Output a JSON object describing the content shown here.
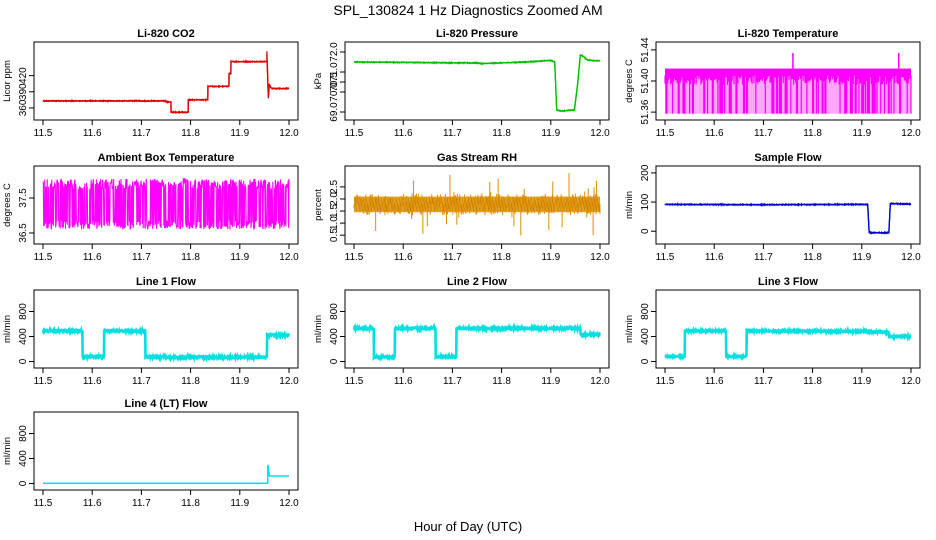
{
  "figure": {
    "title": "SPL_130824  1 Hz Diagnostics Zoomed AM",
    "xlabel": "Hour of Day (UTC)"
  },
  "chart_data": [
    {
      "id": "p0",
      "type": "line",
      "title": "Li-820 CO2",
      "ylabel": "Licor ppm",
      "color": "#e00000",
      "xlim": [
        11.5,
        12.0
      ],
      "ylim": [
        345,
        475
      ],
      "xticks": [
        "11.5",
        "11.6",
        "11.7",
        "11.8",
        "11.9",
        "12.0"
      ],
      "yticks": [
        {
          "v": 360,
          "label": "360"
        },
        {
          "v": 390,
          "label": "390"
        },
        {
          "v": 420,
          "label": "420"
        }
      ],
      "noise": 0.8,
      "series": [
        {
          "x": [
            11.5,
            11.75,
            11.75,
            11.76,
            11.76,
            11.795,
            11.795,
            11.835,
            11.835,
            11.878,
            11.878,
            11.882,
            11.882,
            11.955,
            11.955,
            11.958,
            11.96,
            11.963,
            11.966,
            12.0
          ],
          "y": [
            373,
            373,
            371,
            371,
            352,
            352,
            375,
            375,
            400,
            400,
            424,
            424,
            446,
            446,
            465,
            378,
            404,
            398,
            396,
            396
          ]
        }
      ]
    },
    {
      "id": "p1",
      "type": "line",
      "title": "Li-820 Pressure",
      "ylabel": "kPa",
      "color": "#00c000",
      "xlim": [
        11.5,
        12.0
      ],
      "ylim": [
        68.8,
        72.3
      ],
      "xticks": [
        "11.5",
        "11.6",
        "11.7",
        "11.8",
        "11.9",
        "12.0"
      ],
      "yticks": [
        {
          "v": 69.0,
          "label": "69.0"
        },
        {
          "v": 70.0,
          "label": "70.0"
        },
        {
          "v": 70.5,
          "label": "70.5"
        },
        {
          "v": 71.0,
          "label": "71.0"
        },
        {
          "v": 72.0,
          "label": "72.0"
        }
      ],
      "noise": 0.02,
      "series": [
        {
          "x": [
            11.5,
            11.75,
            11.76,
            11.85,
            11.9,
            11.908,
            11.912,
            11.92,
            11.948,
            11.955,
            11.96,
            11.965,
            11.975,
            12.0
          ],
          "y": [
            71.5,
            71.45,
            71.42,
            71.5,
            71.58,
            71.5,
            69.1,
            69.05,
            69.1,
            70.5,
            71.85,
            71.8,
            71.6,
            71.55
          ]
        }
      ]
    },
    {
      "id": "p2",
      "type": "line",
      "title": "Li-820 Temperature",
      "ylabel": "degrees C",
      "color": "#ff00ff",
      "xlim": [
        11.5,
        12.0
      ],
      "ylim": [
        51.355,
        51.445
      ],
      "xticks": [
        "11.5",
        "11.6",
        "11.7",
        "11.8",
        "11.9",
        "12.0"
      ],
      "yticks": [
        {
          "v": 51.36,
          "label": "51.36"
        },
        {
          "v": 51.4,
          "label": "51.40"
        },
        {
          "v": 51.44,
          "label": "51.44"
        }
      ],
      "band": {
        "x0": 11.5,
        "x1": 12.0,
        "y0": 51.358,
        "y1": 51.416,
        "top_dense": 51.407
      },
      "spikes": [
        {
          "x": 11.76,
          "y": 51.436
        },
        {
          "x": 11.975,
          "y": 51.436
        }
      ]
    },
    {
      "id": "p3",
      "type": "line",
      "title": "Ambient Box Temperature",
      "ylabel": "degrees C",
      "color": "#ff00ff",
      "xlim": [
        11.5,
        12.0
      ],
      "ylim": [
        36.3,
        38.3
      ],
      "xticks": [
        "11.5",
        "11.6",
        "11.7",
        "11.8",
        "11.9",
        "12.0"
      ],
      "yticks": [
        {
          "v": 36.5,
          "label": "36.5"
        },
        {
          "v": 37.5,
          "label": "37.5"
        }
      ],
      "band": {
        "x0": 11.5,
        "x1": 12.0,
        "y0": 36.6,
        "y1": 38.05,
        "mid": 37.35
      }
    },
    {
      "id": "p4",
      "type": "scatter",
      "title": "Gas Stream RH",
      "ylabel": "percent",
      "color": "#e09000",
      "xlim": [
        11.5,
        12.0
      ],
      "ylim": [
        0.3,
        3.2
      ],
      "xticks": [
        "11.5",
        "11.6",
        "11.7",
        "11.8",
        "11.9",
        "12.0"
      ],
      "yticks": [
        {
          "v": 0.5,
          "label": "0.5"
        },
        {
          "v": 1.0,
          "label": "1.0"
        },
        {
          "v": 1.5,
          "label": "1.5"
        },
        {
          "v": 2.0,
          "label": "2.0"
        },
        {
          "v": 2.5,
          "label": "2.5"
        }
      ],
      "band": {
        "x0": 11.5,
        "x1": 12.0,
        "y0": 1.45,
        "y1": 2.1,
        "mid": 1.78
      }
    },
    {
      "id": "p5",
      "type": "line",
      "title": "Sample Flow",
      "ylabel": "ml/min",
      "color": "#0000cc",
      "xlim": [
        11.5,
        12.0
      ],
      "ylim": [
        -30,
        210
      ],
      "xticks": [
        "11.5",
        "11.6",
        "11.7",
        "11.8",
        "11.9",
        "12.0"
      ],
      "yticks": [
        {
          "v": 0,
          "label": "0"
        },
        {
          "v": 100,
          "label": "100"
        },
        {
          "v": 200,
          "label": "200"
        }
      ],
      "noise": 1.5,
      "series": [
        {
          "x": [
            11.5,
            11.7,
            11.9,
            11.912,
            11.915,
            11.955,
            11.958,
            12.0
          ],
          "y": [
            92,
            91,
            92,
            92,
            -5,
            -5,
            95,
            93
          ]
        }
      ]
    },
    {
      "id": "p6",
      "type": "line",
      "title": "Line 1 Flow",
      "ylabel": "ml/min",
      "color": "#00e0e0",
      "xlim": [
        11.5,
        12.0
      ],
      "ylim": [
        -40,
        1080
      ],
      "xticks": [
        "11.5",
        "11.6",
        "11.7",
        "11.8",
        "11.9",
        "12.0"
      ],
      "yticks": [
        {
          "v": 0,
          "label": "0"
        },
        {
          "v": 400,
          "label": "400"
        },
        {
          "v": 800,
          "label": "800"
        }
      ],
      "noise": 12,
      "series": [
        {
          "x": [
            11.5,
            11.58,
            11.58,
            11.624,
            11.624,
            11.708,
            11.708,
            11.75,
            11.955,
            11.955,
            12.0
          ],
          "y": [
            490,
            490,
            75,
            75,
            490,
            490,
            75,
            68,
            68,
            420,
            420
          ]
        }
      ]
    },
    {
      "id": "p7",
      "type": "line",
      "title": "Line 2 Flow",
      "ylabel": "ml/min",
      "color": "#00e0e0",
      "xlim": [
        11.5,
        12.0
      ],
      "ylim": [
        -40,
        1080
      ],
      "xticks": [
        "11.5",
        "11.6",
        "11.7",
        "11.8",
        "11.9",
        "12.0"
      ],
      "yticks": [
        {
          "v": 0,
          "label": "0"
        },
        {
          "v": 400,
          "label": "400"
        },
        {
          "v": 800,
          "label": "800"
        }
      ],
      "noise": 12,
      "series": [
        {
          "x": [
            11.5,
            11.54,
            11.54,
            11.583,
            11.583,
            11.666,
            11.666,
            11.708,
            11.708,
            11.96,
            11.96,
            12.0
          ],
          "y": [
            530,
            530,
            75,
            75,
            530,
            530,
            75,
            75,
            530,
            530,
            430,
            430
          ]
        }
      ]
    },
    {
      "id": "p8",
      "type": "line",
      "title": "Line 3 Flow",
      "ylabel": "ml/min",
      "color": "#00e0e0",
      "xlim": [
        11.5,
        12.0
      ],
      "ylim": [
        -40,
        1080
      ],
      "xticks": [
        "11.5",
        "11.6",
        "11.7",
        "11.8",
        "11.9",
        "12.0"
      ],
      "yticks": [
        {
          "v": 0,
          "label": "0"
        },
        {
          "v": 400,
          "label": "400"
        },
        {
          "v": 800,
          "label": "800"
        }
      ],
      "noise": 10,
      "series": [
        {
          "x": [
            11.5,
            11.54,
            11.54,
            11.624,
            11.624,
            11.666,
            11.666,
            11.9,
            11.955,
            11.955,
            12.0
          ],
          "y": [
            80,
            80,
            490,
            490,
            80,
            80,
            490,
            480,
            470,
            400,
            400
          ]
        }
      ]
    },
    {
      "id": "p9",
      "type": "line",
      "title": "Line 4 (LT) Flow",
      "ylabel": "ml/min",
      "color": "#00e0e0",
      "xlim": [
        11.5,
        12.0
      ],
      "ylim": [
        -40,
        1080
      ],
      "xticks": [
        "11.5",
        "11.6",
        "11.7",
        "11.8",
        "11.9",
        "12.0"
      ],
      "yticks": [
        {
          "v": 0,
          "label": "0"
        },
        {
          "v": 400,
          "label": "400"
        },
        {
          "v": 800,
          "label": "800"
        }
      ],
      "noise": 0,
      "series": [
        {
          "x": [
            11.5,
            11.955,
            11.957,
            11.957,
            11.96,
            11.96,
            12.0
          ],
          "y": [
            5,
            5,
            10,
            300,
            130,
            120,
            120
          ]
        }
      ]
    }
  ]
}
